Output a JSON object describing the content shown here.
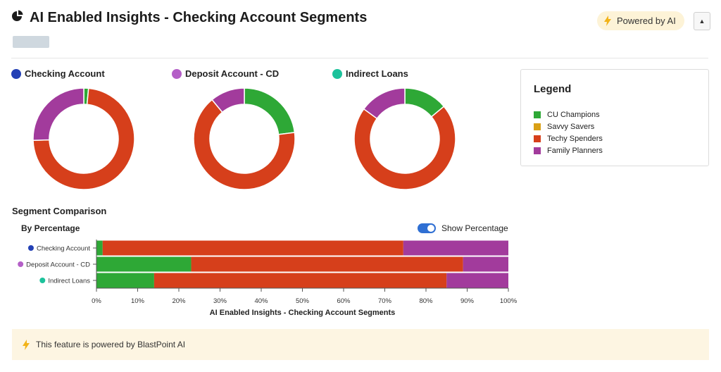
{
  "header": {
    "title": "AI Enabled Insights - Checking Account Segments",
    "ai_badge": "Powered by AI",
    "collapse_glyph": "▲"
  },
  "colors": {
    "CU Champions": "#2ea836",
    "Savvy Savers": "#d9a016",
    "Techy Spenders": "#d63f1b",
    "Family Planners": "#a23b9c",
    "checking_dot": "#2340b5",
    "deposit_dot": "#b45fc7",
    "loans_dot": "#1cc29b",
    "toggle": "#2f6fd3"
  },
  "legend": {
    "title": "Legend",
    "items": [
      "CU Champions",
      "Savvy Savers",
      "Techy Spenders",
      "Family Planners"
    ]
  },
  "segment": {
    "title": "Segment Comparison",
    "subtitle": "By Percentage",
    "toggle_label": "Show Percentage"
  },
  "chart_data": [
    {
      "type": "pie",
      "title": "Checking Account",
      "labels": [
        "CU Champions",
        "Savvy Savers",
        "Techy Spenders",
        "Family Planners"
      ],
      "values": [
        1.5,
        0,
        73,
        25.5
      ]
    },
    {
      "type": "pie",
      "title": "Deposit Account - CD",
      "labels": [
        "CU Champions",
        "Savvy Savers",
        "Techy Spenders",
        "Family Planners"
      ],
      "values": [
        23,
        0,
        66,
        11
      ]
    },
    {
      "type": "pie",
      "title": "Indirect Loans",
      "labels": [
        "CU Champions",
        "Savvy Savers",
        "Techy Spenders",
        "Family Planners"
      ],
      "values": [
        14,
        0,
        71,
        15
      ]
    },
    {
      "type": "bar",
      "orientation": "horizontal",
      "stacked": true,
      "title": "AI Enabled Insights - Checking Account Segments",
      "categories": [
        "Checking Account",
        "Deposit Account - CD",
        "Indirect Loans"
      ],
      "series": [
        {
          "name": "CU Champions",
          "values": [
            1.5,
            23,
            14
          ]
        },
        {
          "name": "Savvy Savers",
          "values": [
            0,
            0,
            0
          ]
        },
        {
          "name": "Techy Spenders",
          "values": [
            73,
            66,
            71
          ]
        },
        {
          "name": "Family Planners",
          "values": [
            25.5,
            11,
            15
          ]
        }
      ],
      "xlim": [
        0,
        100
      ],
      "xticks": [
        "0%",
        "10%",
        "20%",
        "30%",
        "40%",
        "50%",
        "60%",
        "70%",
        "80%",
        "90%",
        "100%"
      ],
      "xlabel": "AI Enabled Insights - Checking Account Segments"
    }
  ],
  "footer": {
    "text": "This feature is powered by BlastPoint AI"
  }
}
